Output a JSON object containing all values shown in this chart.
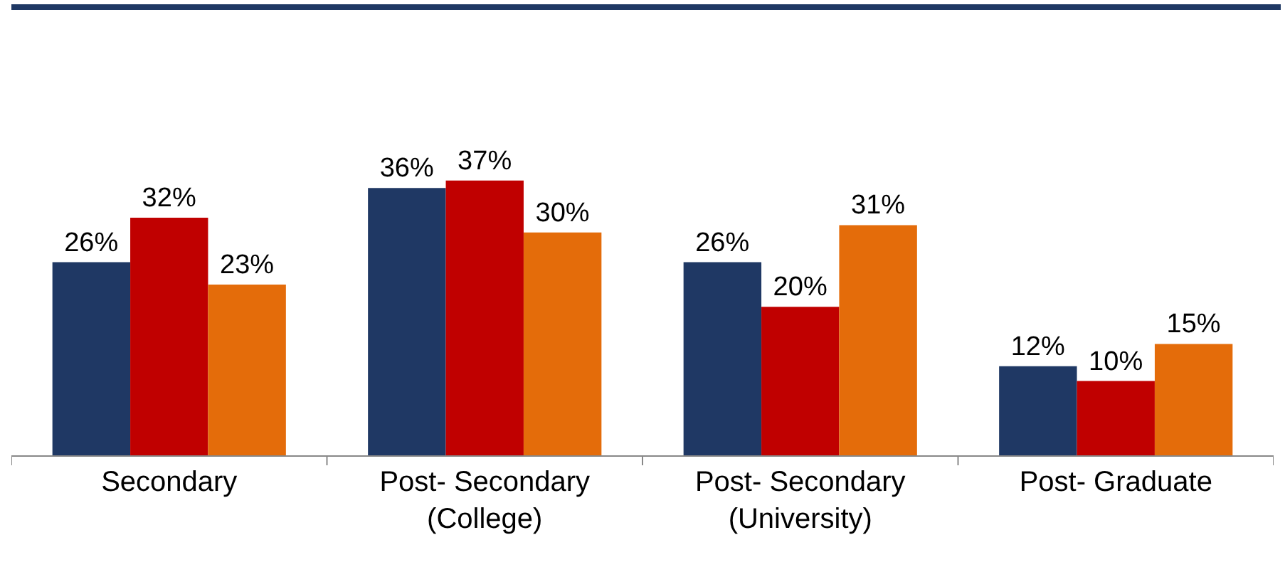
{
  "chart_data": {
    "type": "bar",
    "categories": [
      "Secondary",
      "Post- Secondary (College)",
      "Post- Secondary (University)",
      "Post- Graduate"
    ],
    "series": [
      {
        "color": "#1f3864",
        "values": [
          26,
          36,
          26,
          12
        ],
        "value_labels": [
          "26%",
          "36%",
          "26%",
          "12%"
        ]
      },
      {
        "color": "#c00000",
        "values": [
          32,
          37,
          20,
          10
        ],
        "value_labels": [
          "32%",
          "37%",
          "20%",
          "10%"
        ]
      },
      {
        "color": "#e46c0a",
        "values": [
          23,
          30,
          31,
          15
        ],
        "value_labels": [
          "23%",
          "30%",
          "31%",
          "15%"
        ]
      }
    ],
    "orientation": "vertical"
  }
}
